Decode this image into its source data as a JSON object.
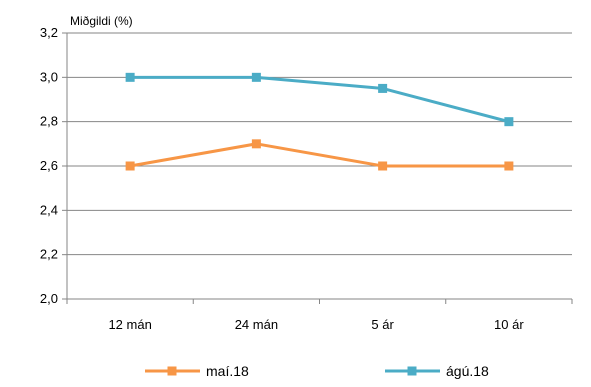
{
  "chart_data": {
    "type": "line",
    "ylabel": "Miðgildi (%)",
    "categories": [
      "12 mán",
      "24 mán",
      "5 ár",
      "10 ár"
    ],
    "ylim": [
      2.0,
      3.2
    ],
    "yticks": [
      "2,0",
      "2,2",
      "2,4",
      "2,6",
      "2,8",
      "3,0",
      "3,2"
    ],
    "grid": true,
    "legend_position": "bottom",
    "series": [
      {
        "name": "maí.18",
        "color": "#f79646",
        "marker": "square",
        "values": [
          2.6,
          2.7,
          2.6,
          2.6
        ]
      },
      {
        "name": "ágú.18",
        "color": "#4bacc6",
        "marker": "square",
        "values": [
          3.0,
          3.0,
          2.95,
          2.8
        ]
      }
    ]
  }
}
